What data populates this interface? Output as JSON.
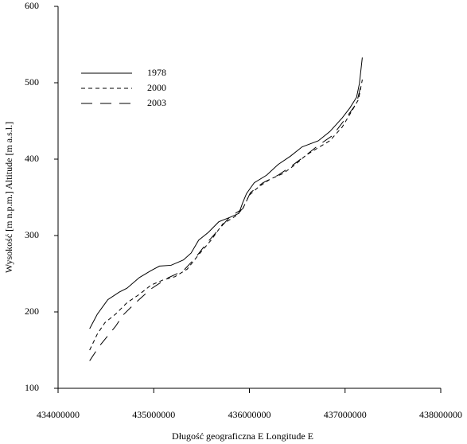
{
  "chart_data": {
    "type": "line",
    "xlabel": "Długość geograficzna E    Longitude E",
    "ylabel": "Wysokość [m n.p.m.]    Altitude [m a.s.l.]",
    "xlim": [
      434000000,
      438000000
    ],
    "xticks": [
      434000000,
      435000000,
      436000000,
      437000000,
      438000000
    ],
    "ylim": [
      100,
      600
    ],
    "yticks": [
      100,
      200,
      300,
      400,
      500,
      600
    ],
    "grid": false,
    "legend": "upper left",
    "series": [
      {
        "name": "1978",
        "color": "#000000",
        "linestyle": "solid",
        "x": [
          434330000,
          434410000,
          434520000,
          434640000,
          434720000,
          434850000,
          434970000,
          435060000,
          435180000,
          435310000,
          435390000,
          435470000,
          435570000,
          435680000,
          435800000,
          435890000,
          435930000,
          435970000,
          436050000,
          436180000,
          436300000,
          436430000,
          436550000,
          436720000,
          436840000,
          436970000,
          437050000,
          437120000,
          437150000,
          437180000
        ],
        "values": [
          178,
          197,
          216,
          226,
          231,
          245,
          254,
          260,
          261,
          268,
          277,
          294,
          304,
          318,
          324,
          329,
          343,
          355,
          369,
          379,
          393,
          404,
          416,
          424,
          436,
          454,
          467,
          481,
          499,
          533
        ]
      },
      {
        "name": "2000",
        "color": "#000000",
        "linestyle": "dashed",
        "x": [
          434330000,
          434410000,
          434490000,
          434600000,
          434720000,
          434850000,
          434970000,
          435100000,
          435220000,
          435350000,
          435470000,
          435600000,
          435720000,
          435850000,
          435930000,
          436000000,
          436100000,
          436220000,
          436350000,
          436470000,
          436590000,
          436720000,
          436840000,
          436970000,
          437080000,
          437140000,
          437180000
        ],
        "values": [
          150,
          171,
          186,
          197,
          212,
          223,
          235,
          242,
          246,
          256,
          275,
          294,
          315,
          325,
          335,
          353,
          364,
          374,
          381,
          392,
          405,
          415,
          424,
          442,
          465,
          478,
          504
        ]
      },
      {
        "name": "2003",
        "color": "#000000",
        "linestyle": "longdash",
        "x": [
          434330000,
          434430000,
          434600000,
          434680000,
          434810000,
          434970000,
          435140000,
          435310000,
          435430000,
          435560000,
          435680000,
          435800000,
          435930000,
          436010000,
          436140000,
          436300000,
          436430000,
          436590000,
          436720000,
          436870000,
          437010000,
          437120000,
          437180000
        ],
        "values": [
          136,
          155,
          181,
          196,
          212,
          230,
          244,
          254,
          270,
          291,
          308,
          325,
          335,
          356,
          369,
          379,
          390,
          405,
          418,
          431,
          454,
          473,
          504
        ]
      }
    ]
  }
}
